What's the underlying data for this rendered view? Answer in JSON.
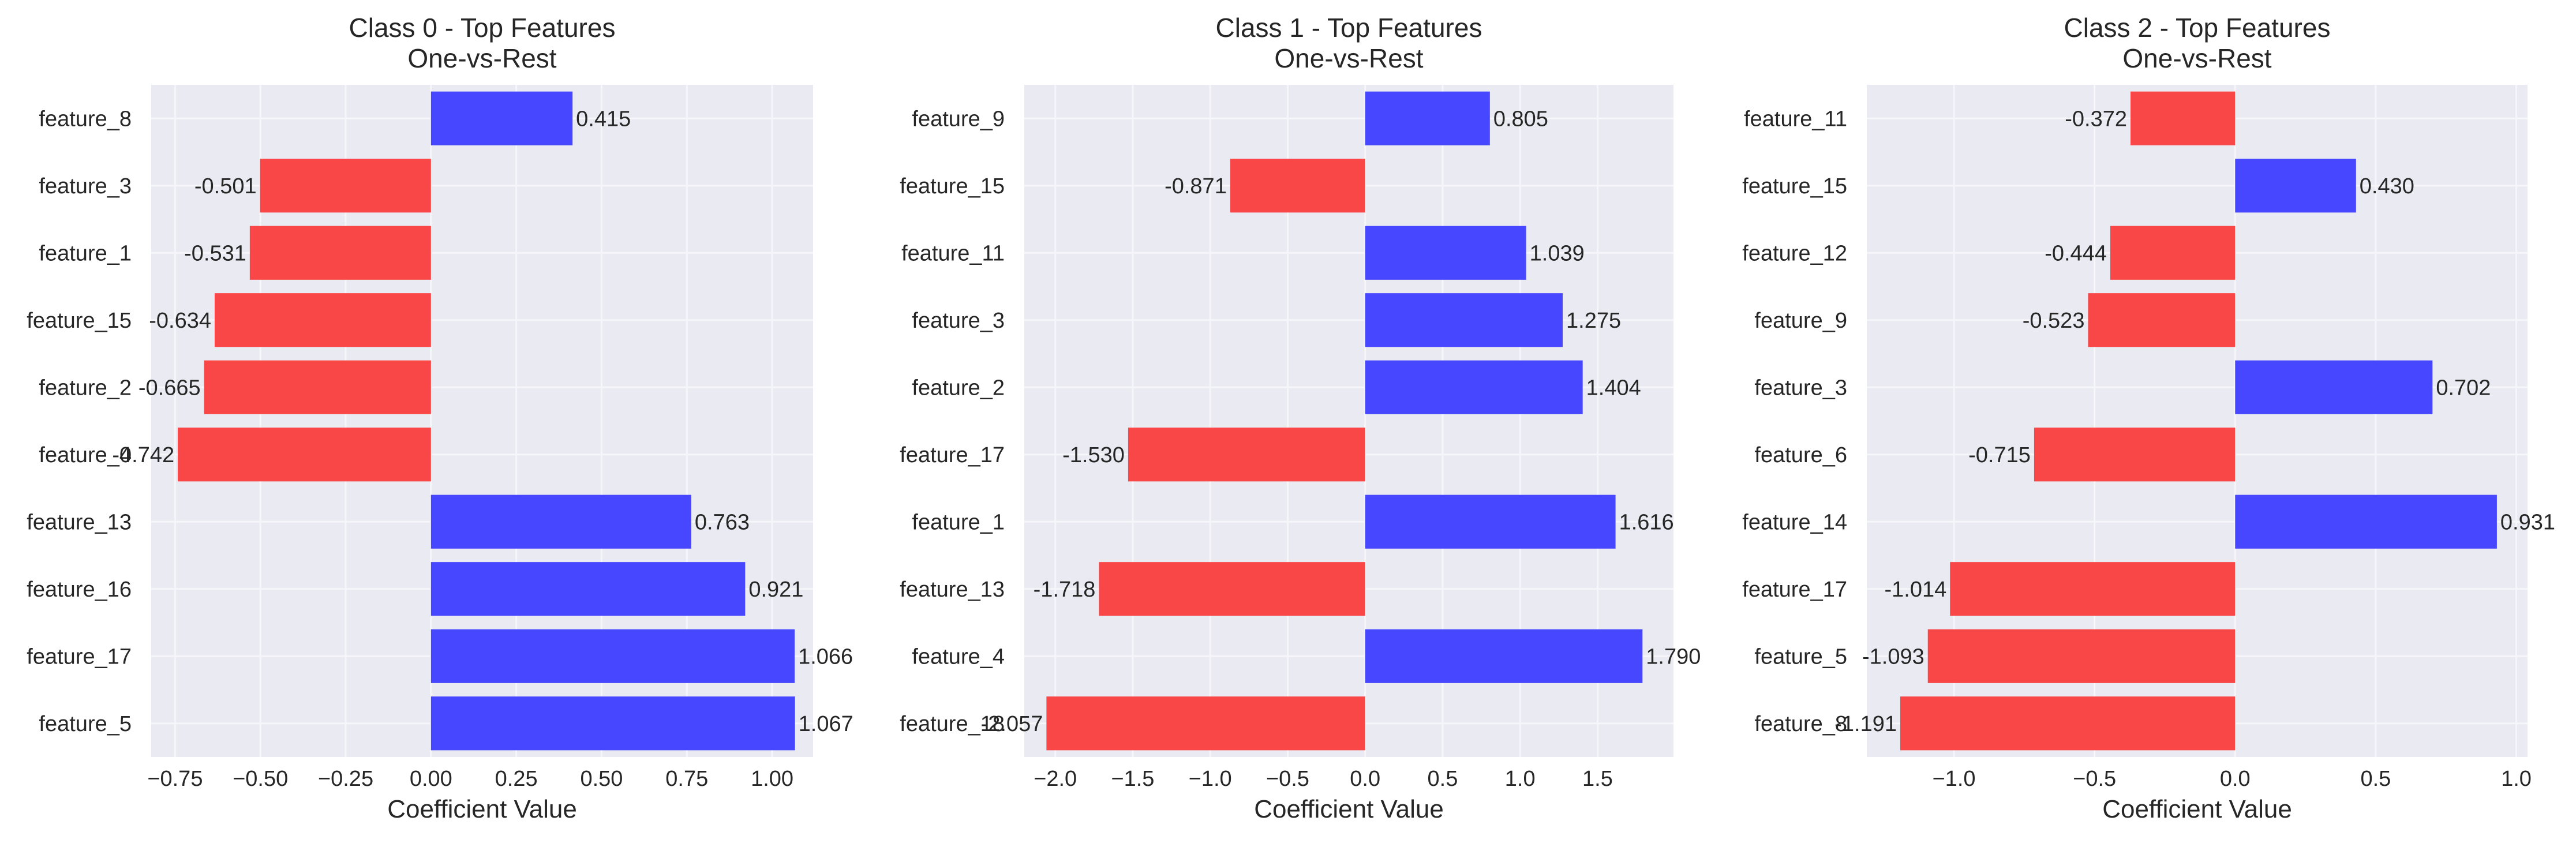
{
  "chart_data": [
    {
      "type": "bar",
      "orientation": "horizontal",
      "title": "Class 0 - Top Features",
      "subtitle": "One-vs-Rest",
      "xlabel": "Coefficient Value",
      "ylabel": "",
      "xlim": [
        -0.82,
        1.12
      ],
      "xticks": [
        -0.75,
        -0.5,
        -0.25,
        0.0,
        0.25,
        0.5,
        0.75,
        1.0
      ],
      "xtick_labels": [
        "−0.75",
        "−0.50",
        "−0.25",
        "0.00",
        "0.25",
        "0.50",
        "0.75",
        "1.00"
      ],
      "categories": [
        "feature_8",
        "feature_3",
        "feature_1",
        "feature_15",
        "feature_2",
        "feature_4",
        "feature_13",
        "feature_16",
        "feature_17",
        "feature_5"
      ],
      "values": [
        0.415,
        -0.501,
        -0.531,
        -0.634,
        -0.665,
        -0.742,
        0.763,
        0.921,
        1.066,
        1.067
      ],
      "value_labels": [
        "0.415",
        "-0.501",
        "-0.531",
        "-0.634",
        "-0.665",
        "-0.742",
        "0.763",
        "0.921",
        "1.066",
        "1.067"
      ],
      "grid": true
    },
    {
      "type": "bar",
      "orientation": "horizontal",
      "title": "Class 1 - Top Features",
      "subtitle": "One-vs-Rest",
      "xlabel": "Coefficient Value",
      "ylabel": "",
      "xlim": [
        -2.2,
        1.99
      ],
      "xticks": [
        -2.0,
        -1.5,
        -1.0,
        -0.5,
        0.0,
        0.5,
        1.0,
        1.5
      ],
      "xtick_labels": [
        "−2.0",
        "−1.5",
        "−1.0",
        "−0.5",
        "0.0",
        "0.5",
        "1.0",
        "1.5"
      ],
      "categories": [
        "feature_9",
        "feature_15",
        "feature_11",
        "feature_3",
        "feature_2",
        "feature_17",
        "feature_1",
        "feature_13",
        "feature_4",
        "feature_18"
      ],
      "values": [
        0.805,
        -0.871,
        1.039,
        1.275,
        1.404,
        -1.53,
        1.616,
        -1.718,
        1.79,
        -2.057
      ],
      "value_labels": [
        "0.805",
        "-0.871",
        "1.039",
        "1.275",
        "1.404",
        "-1.530",
        "1.616",
        "-1.718",
        "1.790",
        "-2.057"
      ],
      "grid": true
    },
    {
      "type": "bar",
      "orientation": "horizontal",
      "title": "Class 2 - Top Features",
      "subtitle": "One-vs-Rest",
      "xlabel": "Coefficient Value",
      "ylabel": "",
      "xlim": [
        -1.31,
        1.04
      ],
      "xticks": [
        -1.0,
        -0.5,
        0.0,
        0.5,
        1.0
      ],
      "xtick_labels": [
        "−1.0",
        "−0.5",
        "0.0",
        "0.5",
        "1.0"
      ],
      "categories": [
        "feature_11",
        "feature_15",
        "feature_12",
        "feature_9",
        "feature_3",
        "feature_6",
        "feature_14",
        "feature_17",
        "feature_5",
        "feature_8"
      ],
      "values": [
        -0.372,
        0.43,
        -0.444,
        -0.523,
        0.702,
        -0.715,
        0.931,
        -1.014,
        -1.093,
        -1.191
      ],
      "value_labels": [
        "-0.372",
        "0.430",
        "-0.444",
        "-0.523",
        "0.702",
        "-0.715",
        "0.931",
        "-1.014",
        "-1.093",
        "-1.191"
      ],
      "grid": true
    }
  ],
  "style": {
    "positive_color": "#4747ff",
    "negative_color": "#f94748",
    "plot_background": "#eaeaf2",
    "grid_color": "#f6f6fa"
  }
}
